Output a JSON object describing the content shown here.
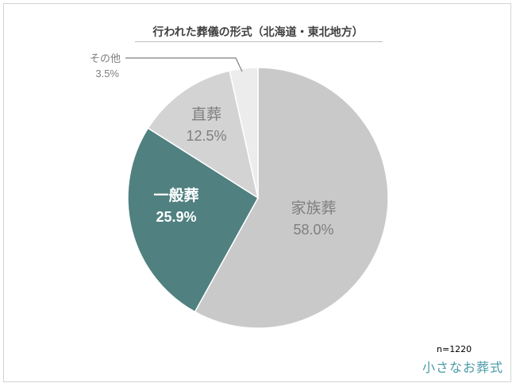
{
  "chart_data": {
    "type": "pie",
    "title": "行われた葬儀の形式（北海道・東北地方）",
    "slices": [
      {
        "label": "家族葬",
        "value": 58.0,
        "value_label": "58.0%",
        "color": "#c9c9c9",
        "text_color": "#7f7f7f",
        "bold": false
      },
      {
        "label": "一般葬",
        "value": 25.9,
        "value_label": "25.9%",
        "color": "#508080",
        "text_color": "#ffffff",
        "bold": true
      },
      {
        "label": "直葬",
        "value": 12.5,
        "value_label": "12.5%",
        "color": "#d3d3d3",
        "text_color": "#7f7f7f",
        "bold": false
      },
      {
        "label": "その他",
        "value": 3.5,
        "value_label": "3.5%",
        "color": "#ececec",
        "text_color": "#7f7f7f",
        "bold": false
      }
    ],
    "start": "12 o'clock",
    "direction": "clockwise",
    "legend": "none"
  },
  "footer": {
    "sample_size": "n=1220",
    "brand": "小さなお葬式"
  }
}
